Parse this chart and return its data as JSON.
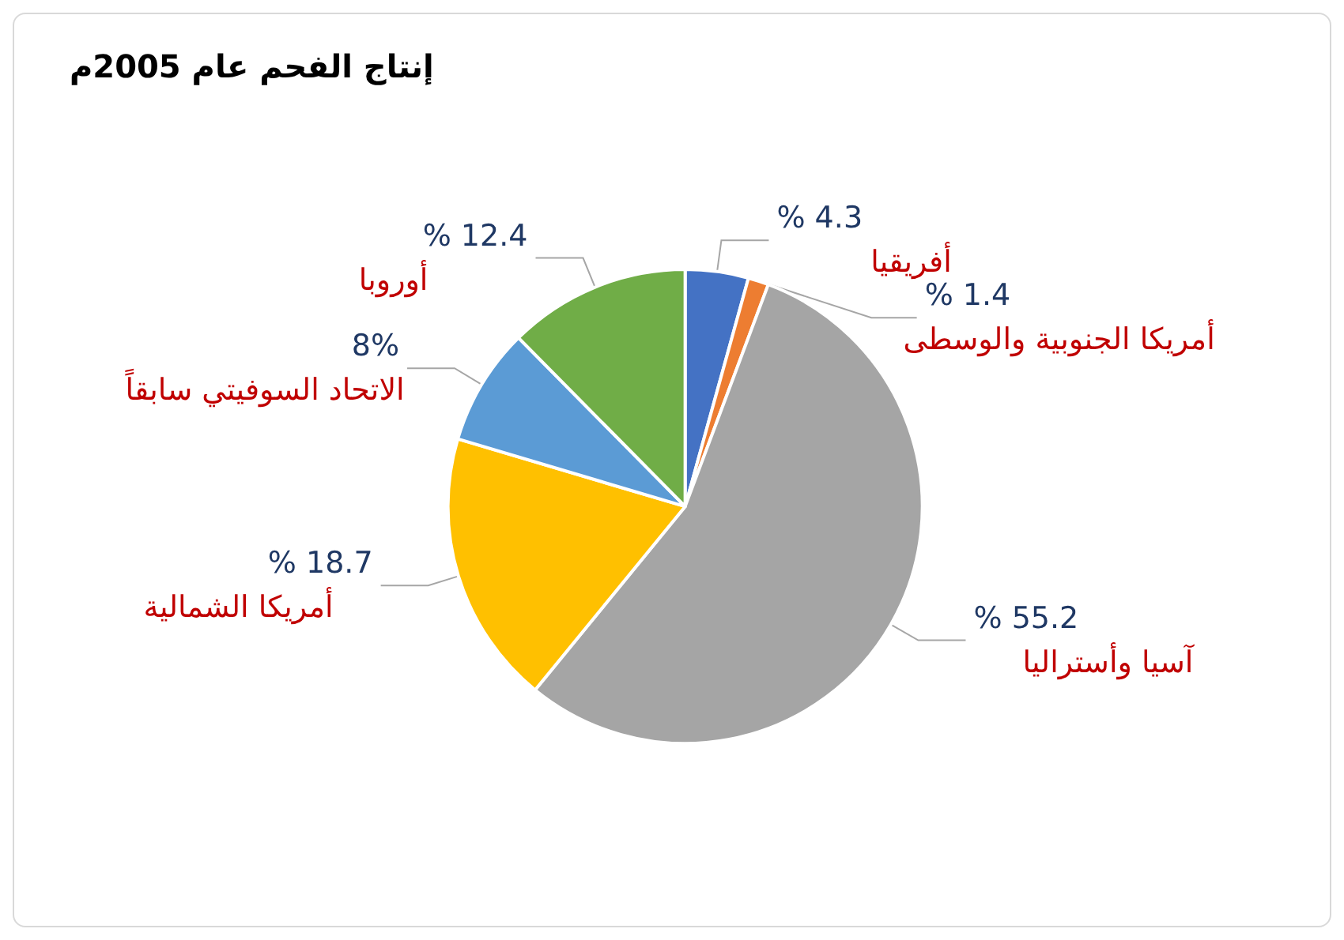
{
  "chart_data": {
    "type": "pie",
    "title": "إنتاج الفحم عام 2005م",
    "categories": [
      "أفريقيا",
      "أمريكا الجنوبية والوسطى",
      "آسيا وأستراليا",
      "أمريكا الشمالية",
      "الاتحاد السوفيتي سابقاً",
      "أوروبا"
    ],
    "values": [
      4.3,
      1.4,
      55.2,
      18.7,
      8,
      12.4
    ],
    "colors": [
      "#4472c4",
      "#ed7d31",
      "#a5a5a5",
      "#ffc000",
      "#5b9bd5",
      "#70ad47"
    ],
    "value_labels": [
      "% 4.3",
      "% 1.4",
      "% 55.2",
      "% 18.7",
      "8%",
      "% 12.4"
    ],
    "legend": false
  }
}
